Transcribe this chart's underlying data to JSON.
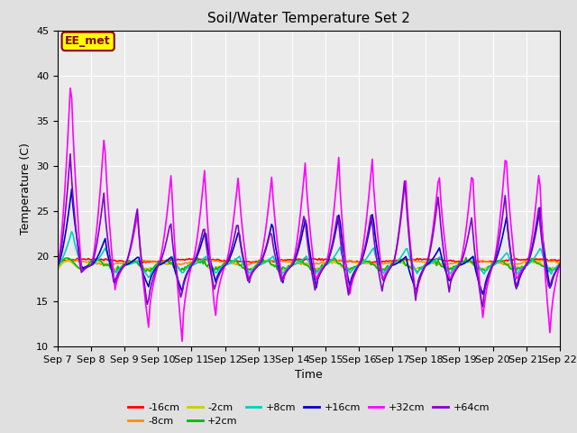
{
  "title": "Soil/Water Temperature Set 2",
  "xlabel": "Time",
  "ylabel": "Temperature (C)",
  "ylim": [
    10,
    45
  ],
  "yticks": [
    10,
    15,
    20,
    25,
    30,
    35,
    40,
    45
  ],
  "xtick_labels": [
    "Sep 7",
    "Sep 8",
    "Sep 9",
    "Sep 10",
    "Sep 11",
    "Sep 12",
    "Sep 13",
    "Sep 14",
    "Sep 15",
    "Sep 16",
    "Sep 17",
    "Sep 18",
    "Sep 19",
    "Sep 20",
    "Sep 21",
    "Sep 22"
  ],
  "annotation_text": "EE_met",
  "annotation_color": "#8B0000",
  "annotation_bg": "#FFFF00",
  "bg_color": "#E0E0E0",
  "plot_bg": "#EBEBEB",
  "series": {
    "-16cm": {
      "color": "#FF0000",
      "lw": 1.2
    },
    "-8cm": {
      "color": "#FF8C00",
      "lw": 1.2
    },
    "-2cm": {
      "color": "#CCCC00",
      "lw": 1.2
    },
    "+2cm": {
      "color": "#00BB00",
      "lw": 1.2
    },
    "+8cm": {
      "color": "#00CCCC",
      "lw": 1.2
    },
    "+16cm": {
      "color": "#0000CC",
      "lw": 1.2
    },
    "+32cm": {
      "color": "#FF00FF",
      "lw": 1.2
    },
    "+64cm": {
      "color": "#8800CC",
      "lw": 1.2
    }
  }
}
